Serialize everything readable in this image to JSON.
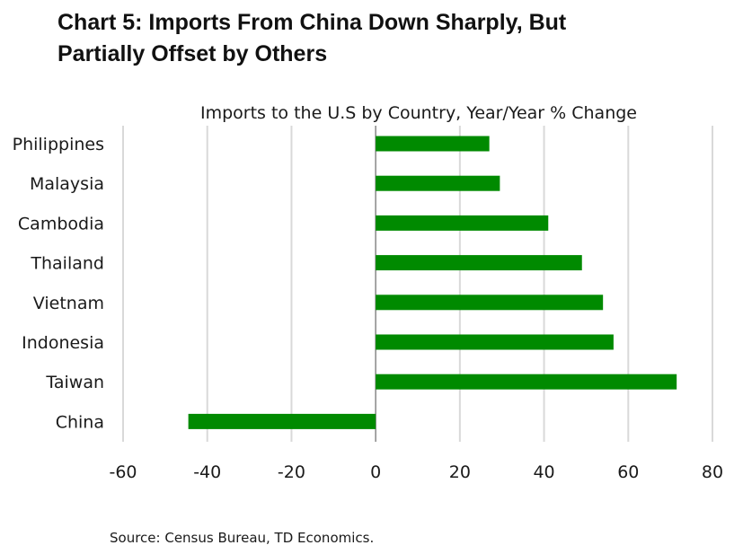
{
  "header": {
    "title_line1": "Chart 5: Imports From China Down Sharply, But",
    "title_line2": "Partially Offset by Others"
  },
  "chart_data": {
    "type": "bar",
    "orientation": "horizontal",
    "title": "Imports to the U.S by Country, Year/Year % Change",
    "categories": [
      "Philippines",
      "Malaysia",
      "Cambodia",
      "Thailand",
      "Vietnam",
      "Indonesia",
      "Taiwan",
      "China"
    ],
    "values": [
      27,
      29.5,
      41,
      49,
      54,
      56.5,
      71.5,
      -44.5
    ],
    "xlim": [
      -60,
      80
    ],
    "xticks": [
      "-60",
      "-40",
      "-20",
      "0",
      "20",
      "40",
      "60",
      "80"
    ],
    "xtick_values": [
      -60,
      -40,
      -20,
      0,
      20,
      40,
      60,
      80
    ],
    "grid": "vertical",
    "legend": "none",
    "colors": {
      "bar": "#008a00",
      "grid": "#d9d9d9",
      "zero_line": "#888888"
    }
  },
  "footer": {
    "source": "Source: Census Bureau, TD Economics."
  }
}
